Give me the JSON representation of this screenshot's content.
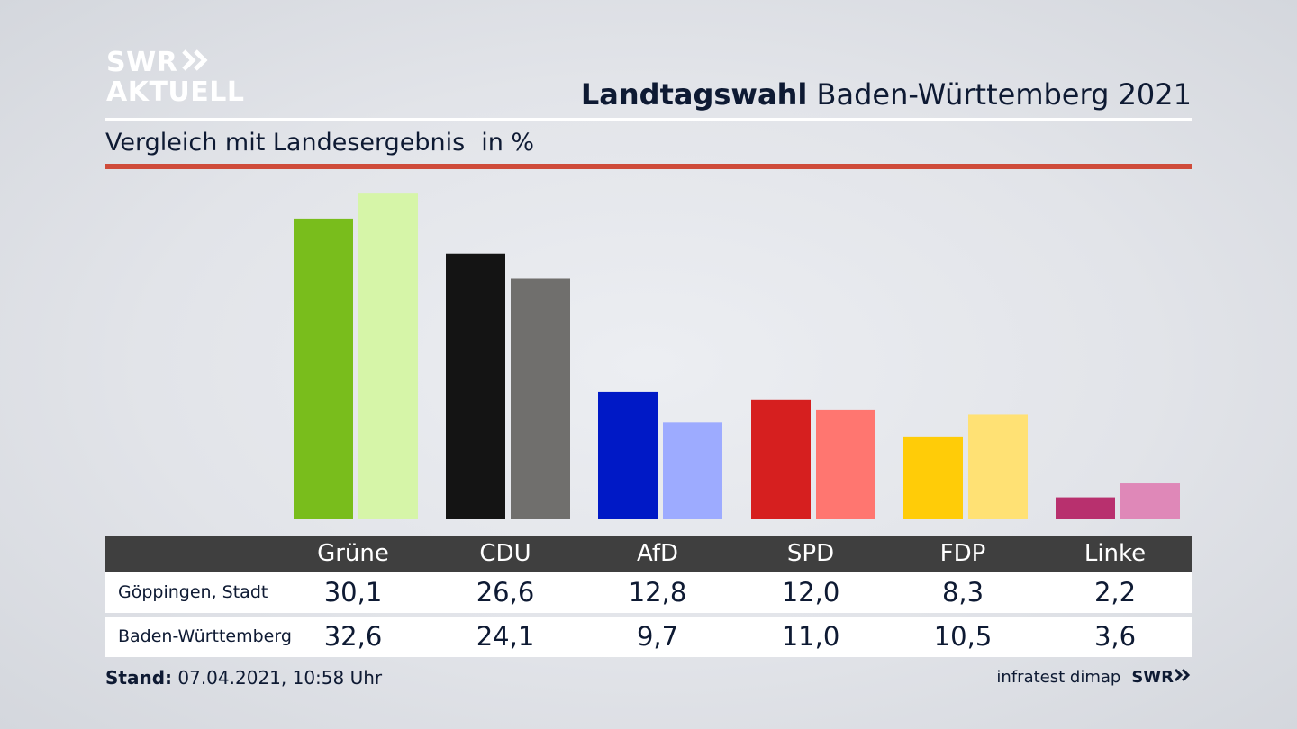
{
  "logo": {
    "line1": "SWR",
    "line2": "AKTUELL"
  },
  "header": {
    "title_bold": "Landtagswahl",
    "title_rest": "Baden-Württemberg 2021",
    "subtitle": "Vergleich mit Landesergebnis",
    "unit": "in %"
  },
  "chart_data": {
    "type": "bar",
    "categories": [
      "Grüne",
      "CDU",
      "AfD",
      "SPD",
      "FDP",
      "Linke"
    ],
    "series": [
      {
        "name": "Göppingen, Stadt",
        "values": [
          30.1,
          26.6,
          12.8,
          12.0,
          8.3,
          2.2
        ]
      },
      {
        "name": "Baden-Württemberg",
        "values": [
          32.6,
          24.1,
          9.7,
          11.0,
          10.5,
          3.6
        ]
      }
    ],
    "colors": {
      "primary": [
        "#79bd1c",
        "#141414",
        "#0019c6",
        "#d61f1f",
        "#ffcc08",
        "#b8306e"
      ],
      "secondary": [
        "#d6f5a8",
        "#706f6d",
        "#9dabff",
        "#ff7670",
        "#ffe174",
        "#df88b8"
      ]
    },
    "ylim": [
      0,
      33
    ]
  },
  "table": {
    "rows": [
      {
        "label": "Göppingen, Stadt",
        "values": [
          "30,1",
          "26,6",
          "12,8",
          "12,0",
          "8,3",
          "2,2"
        ]
      },
      {
        "label": "Baden-Württemberg",
        "values": [
          "32,6",
          "24,1",
          "9,7",
          "11,0",
          "10,5",
          "3,6"
        ]
      }
    ]
  },
  "footer": {
    "stand_label": "Stand:",
    "stand_value": "07.04.2021, 10:58 Uhr",
    "source": "infratest dimap",
    "brand": "SWR"
  }
}
